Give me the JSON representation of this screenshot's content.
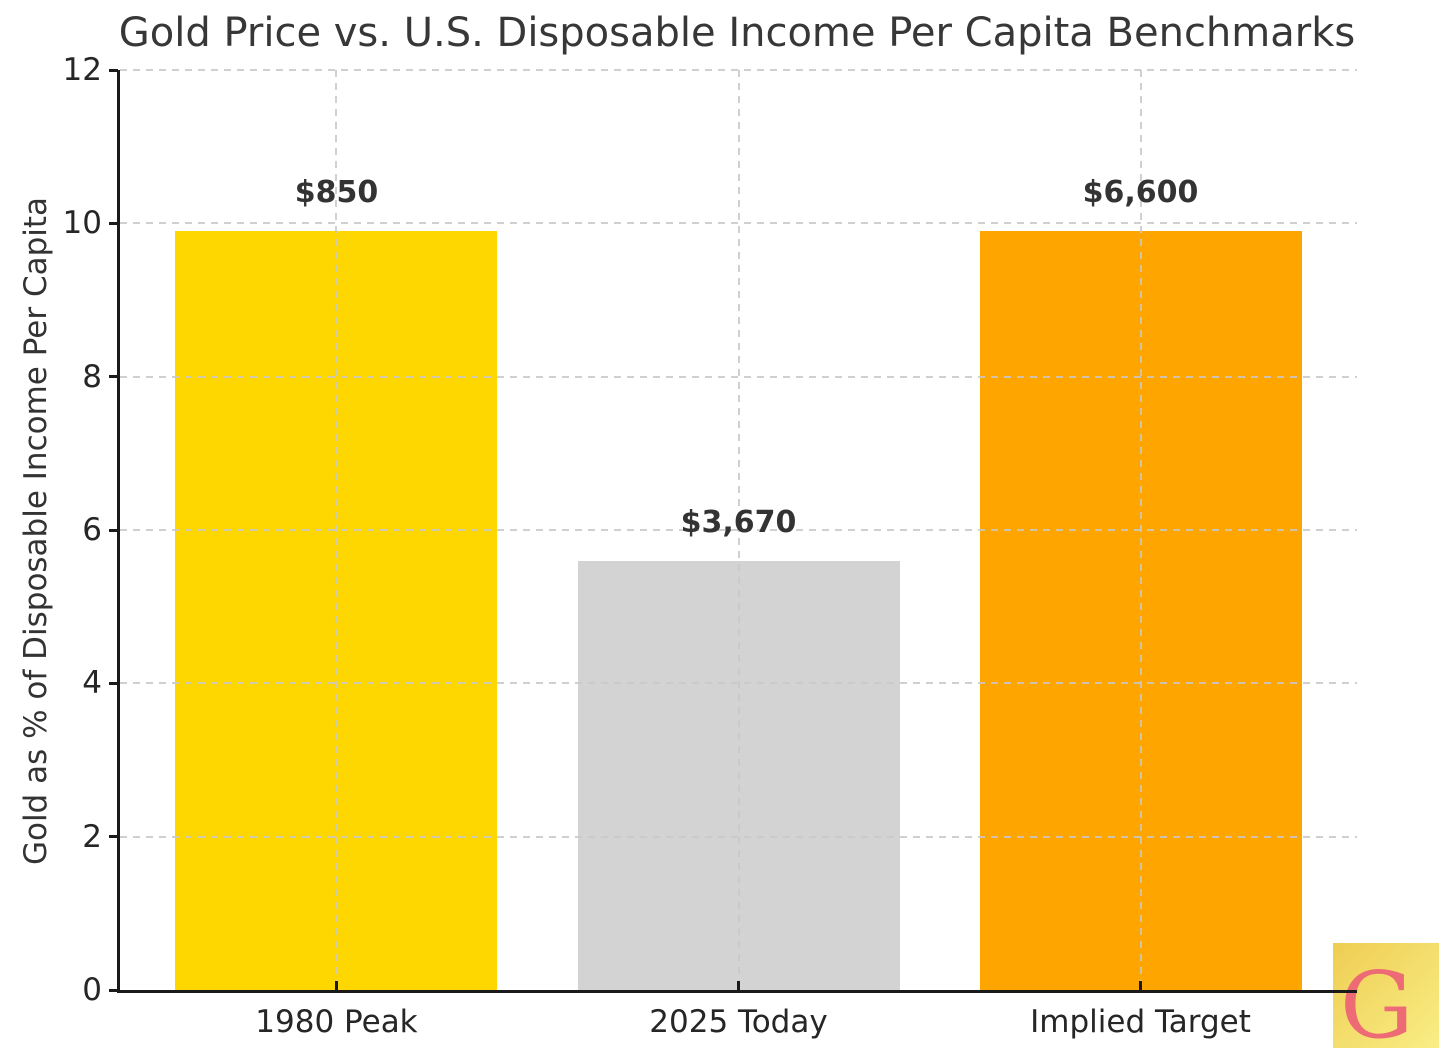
{
  "chart_data": {
    "type": "bar",
    "title": "Gold Price vs. U.S. Disposable Income Per Capita Benchmarks",
    "xlabel": "",
    "ylabel": "Gold as % of Disposable Income Per Capita",
    "categories": [
      "1980 Peak",
      "2025 Today",
      "Implied Target"
    ],
    "values": [
      9.9,
      5.6,
      9.9
    ],
    "bar_labels": [
      "$850",
      "$3,670",
      "$6,600"
    ],
    "bar_colors": [
      "#FFD700",
      "#D3D3D3",
      "#FFA500"
    ],
    "ylim": [
      0,
      12
    ],
    "yticks": [
      0,
      2,
      4,
      6,
      8,
      10,
      12
    ],
    "grid": "dashed-horizontal-and-vertical",
    "legend": "none"
  },
  "logo": {
    "letter": "G",
    "letter_color": "#ed6b75",
    "bg_gradient_start": "#eecd53",
    "bg_gradient_end": "#f9ee85"
  },
  "colors": {
    "text": "#333333",
    "spine": "#1a1a1a",
    "grid": "#c8c8c8",
    "background": "#ffffff"
  }
}
